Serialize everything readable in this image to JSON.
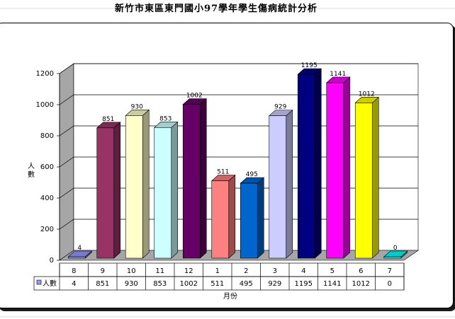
{
  "chart_data": {
    "type": "bar",
    "title": "新竹市東區東門國小97學年學生傷病統計分析",
    "xlabel": "月份",
    "ylabel": "人數",
    "ylim": [
      0,
      1200
    ],
    "y_ticks": [
      "0",
      "200",
      "400",
      "600",
      "800",
      "1000",
      "1200"
    ],
    "grid": true,
    "categories": [
      "8",
      "9",
      "10",
      "11",
      "12",
      "1",
      "2",
      "3",
      "4",
      "5",
      "6",
      "7"
    ],
    "series": [
      {
        "name": "人數",
        "values": [
          4,
          851,
          930,
          853,
          1002,
          511,
          495,
          929,
          1195,
          1141,
          1012,
          0
        ]
      }
    ],
    "bar_colors": [
      "#9999FF",
      "#993366",
      "#FFFFCC",
      "#CCFFFF",
      "#660066",
      "#FF8080",
      "#0066CC",
      "#CCCCFF",
      "#000080",
      "#FF00FF",
      "#FFFF00",
      "#00FFFF"
    ],
    "data_table": true
  }
}
